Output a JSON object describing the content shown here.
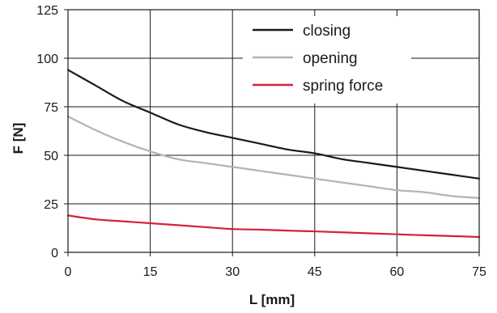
{
  "chart_data": {
    "type": "line",
    "xlabel": "L [mm]",
    "ylabel": "F [N]",
    "xlim": [
      0,
      75
    ],
    "ylim": [
      0,
      125
    ],
    "x_ticks": [
      0,
      15,
      30,
      45,
      60,
      75
    ],
    "y_ticks": [
      0,
      25,
      50,
      75,
      100,
      125
    ],
    "x_tick_labels": [
      "0",
      "15",
      "30",
      "45",
      "60",
      "75"
    ],
    "y_tick_labels": [
      "0",
      "25",
      "50",
      "75",
      "100",
      "125"
    ],
    "grid": true,
    "legend_position": "top-right",
    "series": [
      {
        "name": "closing",
        "color": "#1a1a1a",
        "x": [
          0,
          5,
          10,
          15,
          20,
          25,
          30,
          35,
          40,
          45,
          50,
          55,
          60,
          65,
          70,
          75
        ],
        "y": [
          94,
          86,
          78,
          72,
          66,
          62,
          59,
          56,
          53,
          51,
          48,
          46,
          44,
          42,
          40,
          38
        ]
      },
      {
        "name": "opening",
        "color": "#b3b3b3",
        "x": [
          0,
          5,
          10,
          15,
          20,
          25,
          30,
          35,
          40,
          45,
          50,
          55,
          60,
          65,
          70,
          75
        ],
        "y": [
          70,
          63,
          57,
          52,
          48,
          46,
          44,
          42,
          40,
          38,
          36,
          34,
          32,
          31,
          29,
          28
        ]
      },
      {
        "name": "spring force",
        "color": "#d4213d",
        "x": [
          0,
          5,
          10,
          15,
          20,
          25,
          30,
          35,
          40,
          45,
          50,
          55,
          60,
          65,
          70,
          75
        ],
        "y": [
          19,
          17,
          16,
          15,
          14,
          13,
          12,
          11.7,
          11.2,
          10.8,
          10.3,
          9.8,
          9.3,
          8.8,
          8.4,
          7.9
        ]
      }
    ]
  }
}
